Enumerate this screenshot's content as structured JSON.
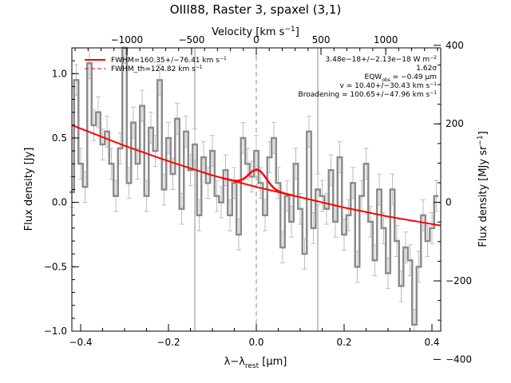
{
  "chart_data": {
    "type": "line",
    "title": "OIII88, Raster 3, spaxel (3,1)",
    "xlabel": "λ−λ",
    "xlabel_sub": "rest",
    "xlabel_unit": " [μm]",
    "ylabel": "Flux density [Jy]",
    "ylabel_right": "Flux density [MJy sr",
    "ylabel_right_sup": "−1",
    "ylabel_right_close": "]",
    "top_xlabel": "Velocity [km s",
    "top_xlabel_sup": "−1",
    "top_xlabel_close": "]",
    "xlim": [
      -0.42,
      0.42
    ],
    "ylim": [
      -1.0,
      1.2
    ],
    "xticks": [
      -0.4,
      -0.2,
      0.0,
      0.2,
      0.4
    ],
    "xtick_labels": [
      "−0.4",
      "−0.2",
      "0.0",
      "0.2",
      "0.4"
    ],
    "yticks": [
      -1.0,
      -0.5,
      0.0,
      0.5,
      1.0
    ],
    "ytick_labels": [
      "−1.0",
      "−0.5",
      "0.0",
      "0.5",
      "1.0"
    ],
    "top_ticks": [
      -1000,
      -500,
      0,
      500,
      1000
    ],
    "top_tick_labels": [
      "−1000",
      "−500",
      "0",
      "500",
      "1000"
    ],
    "right_ticks": [
      -400,
      -200,
      0,
      200,
      400
    ],
    "right_tick_labels": [
      "−400",
      "−200",
      "0",
      "200",
      "400"
    ],
    "right_per_jy": 328,
    "rest_wavelength_um": 88.356,
    "vlines": {
      "solid_x": [
        -0.14,
        0.14
      ],
      "dashed_x": [
        0.0
      ]
    },
    "legend": [
      {
        "label": "FWHM=160.35+/−76.41 km s",
        "sup": "−1",
        "style": "solid"
      },
      {
        "label": "FWHM_th=124.82 km s",
        "sup": "−1",
        "style": "dashed"
      }
    ],
    "annotations": [
      {
        "text": "3.48e−18+/−2.13e−18 W m",
        "sup": "−2"
      },
      {
        "text": "1.62σ"
      },
      {
        "text": "EQW",
        "sub": "obs",
        "tail": " = −0.49 μm"
      },
      {
        "text": "v = 10.40+/−30.43 km s",
        "sup": "−1"
      },
      {
        "text": "Broadening = 100.65+/−47.96 km s",
        "sup": "−1"
      }
    ],
    "colors": {
      "data": "#8c8c8c",
      "fit": "#ff0000",
      "axis": "#000000",
      "vline": "#8c8c8c"
    },
    "baseline": {
      "x": [
        -0.42,
        -0.3,
        -0.2,
        -0.1,
        0.0,
        0.1,
        0.2,
        0.3,
        0.42
      ],
      "y": [
        0.6,
        0.44,
        0.32,
        0.21,
        0.12,
        0.04,
        -0.04,
        -0.11,
        -0.18
      ]
    },
    "gaussian": {
      "center": 0.003,
      "amplitude": 0.135,
      "sigma": 0.02
    },
    "series": [
      {
        "x": [
          -0.42,
          -0.41,
          -0.4,
          -0.39,
          -0.38,
          -0.37,
          -0.36,
          -0.35,
          -0.34,
          -0.33,
          -0.32,
          -0.31,
          -0.3,
          -0.29,
          -0.28,
          -0.27,
          -0.26,
          -0.25,
          -0.24,
          -0.23,
          -0.22,
          -0.21,
          -0.2,
          -0.19,
          -0.18,
          -0.17,
          -0.16,
          -0.15,
          -0.14,
          -0.13,
          -0.12,
          -0.11,
          -0.1,
          -0.09,
          -0.08,
          -0.07,
          -0.06,
          -0.05,
          -0.04,
          -0.03,
          -0.02,
          -0.01,
          0.0,
          0.01,
          0.02,
          0.03,
          0.04,
          0.05,
          0.06,
          0.07,
          0.08,
          0.09,
          0.1,
          0.11,
          0.12,
          0.13,
          0.14,
          0.15,
          0.16,
          0.17,
          0.18,
          0.19,
          0.2,
          0.21,
          0.22,
          0.23,
          0.24,
          0.25,
          0.26,
          0.27,
          0.28,
          0.29,
          0.3,
          0.31,
          0.32,
          0.33,
          0.34,
          0.35,
          0.36,
          0.37,
          0.38,
          0.39,
          0.4,
          0.41
        ],
        "y": [
          0.08,
          0.95,
          0.3,
          0.12,
          1.08,
          0.6,
          0.7,
          0.45,
          0.55,
          0.3,
          0.05,
          0.42,
          1.2,
          0.15,
          0.62,
          0.3,
          0.75,
          0.05,
          0.58,
          0.4,
          0.95,
          0.1,
          0.5,
          0.22,
          0.65,
          -0.05,
          0.55,
          0.25,
          0.45,
          -0.1,
          0.35,
          0.15,
          0.4,
          0.05,
          0.0,
          0.25,
          -0.1,
          0.15,
          -0.25,
          0.5,
          0.3,
          0.2,
          0.4,
          0.15,
          -0.1,
          0.35,
          0.5,
          0.15,
          -0.35,
          0.05,
          -0.15,
          0.3,
          -0.05,
          -0.4,
          0.55,
          -0.2,
          0.1,
          0.05,
          -0.05,
          0.25,
          -0.15,
          0.35,
          -0.25,
          -0.1,
          0.15,
          -0.5,
          0.05,
          0.3,
          -0.15,
          -0.45,
          0.1,
          -0.2,
          -0.55,
          0.1,
          -0.3,
          -0.65,
          -0.35,
          -0.45,
          -0.95,
          -0.5,
          -0.1,
          -0.3,
          -0.2,
          0.05
        ],
        "err": 0.12
      }
    ]
  }
}
